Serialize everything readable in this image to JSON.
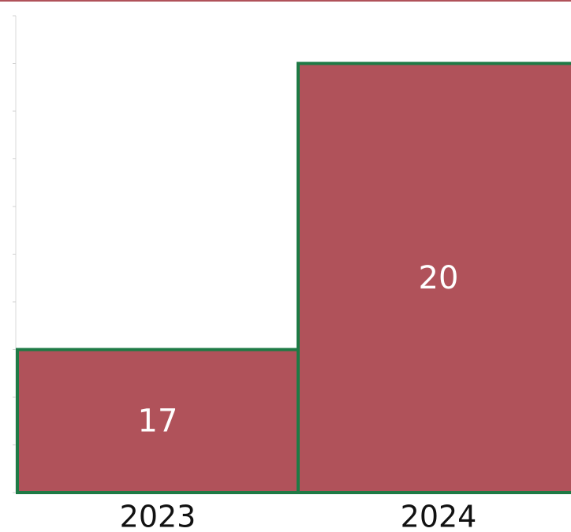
{
  "chart_data": {
    "type": "bar",
    "categories": [
      "2023",
      "2024"
    ],
    "values": [
      17,
      20
    ],
    "color": "#b0525a",
    "edge_color": "#1e7a45",
    "ylim": [
      15.5,
      20.5
    ],
    "yticks": [
      15.5,
      16,
      16.5,
      17,
      17.5,
      18,
      18.5,
      19,
      19.5,
      20,
      20.5
    ]
  }
}
